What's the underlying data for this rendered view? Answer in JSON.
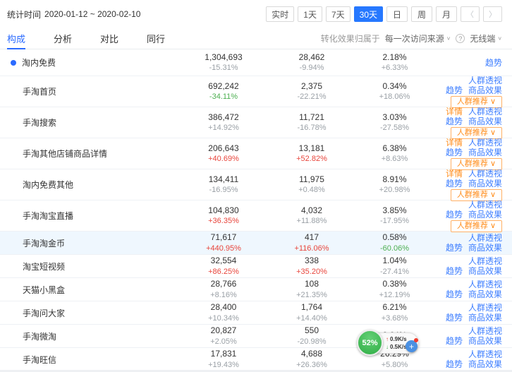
{
  "colors": {
    "accent_blue": "#2b6bff",
    "link_blue": "#3d7eff",
    "link_orange": "#ff8c1a",
    "up_red": "#e8453c",
    "down_green": "#4caf50",
    "neutral_gray": "#9aa0a6",
    "highlight_row_bg": "#eff7fe",
    "selected_period_bg": "#2678ff"
  },
  "header": {
    "stat_time_label": "统计时间",
    "date_range": "2020-01-12 ~ 2020-02-10",
    "periods": [
      "实时",
      "1天",
      "7天",
      "30天",
      "日",
      "周",
      "月"
    ],
    "selected_period": "30天",
    "prev_icon": "〈",
    "next_icon": "〉"
  },
  "tabs": [
    {
      "key": "composition",
      "label": "构成",
      "active": true
    },
    {
      "key": "analysis",
      "label": "分析",
      "active": false
    },
    {
      "key": "compare",
      "label": "对比",
      "active": false
    },
    {
      "key": "peers",
      "label": "同行",
      "active": false
    }
  ],
  "toolbar": {
    "attribution_label": "转化效果归属于",
    "attribution_value": "每一次访问来源",
    "caret": "∨",
    "help_icon": "?",
    "terminal_value": "无线端"
  },
  "table": {
    "rows": [
      {
        "name": "淘内免费",
        "dot": true,
        "highlight": false,
        "metrics": [
          {
            "value": "1,304,693",
            "change": "-15.31%",
            "tone": "gray"
          },
          {
            "value": "28,462",
            "change": "-9.94%",
            "tone": "gray"
          },
          {
            "value": "2.18%",
            "change": "+6.33%",
            "tone": "gray"
          }
        ],
        "links_row1": [],
        "links_row2": [
          {
            "key": "trend",
            "label": "趋势",
            "accent": false
          }
        ],
        "reco_button": null
      },
      {
        "name": "手淘首页",
        "dot": false,
        "highlight": false,
        "metrics": [
          {
            "value": "692,242",
            "change": "-34.11%",
            "tone": "green"
          },
          {
            "value": "2,375",
            "change": "-22.21%",
            "tone": "gray"
          },
          {
            "value": "0.34%",
            "change": "+18.06%",
            "tone": "gray"
          }
        ],
        "links_row1": [
          {
            "key": "audience-insight",
            "label": "人群透视",
            "accent": false
          }
        ],
        "links_row2": [
          {
            "key": "trend",
            "label": "趋势",
            "accent": false
          },
          {
            "key": "product-effect",
            "label": "商品效果",
            "accent": false
          }
        ],
        "reco_button": "人群推荐"
      },
      {
        "name": "手淘搜索",
        "dot": false,
        "highlight": false,
        "metrics": [
          {
            "value": "386,472",
            "change": "+14.92%",
            "tone": "gray"
          },
          {
            "value": "11,721",
            "change": "-16.78%",
            "tone": "gray"
          },
          {
            "value": "3.03%",
            "change": "-27.58%",
            "tone": "gray"
          }
        ],
        "links_row1": [
          {
            "key": "detail",
            "label": "详情",
            "accent": true
          },
          {
            "key": "audience-insight",
            "label": "人群透视",
            "accent": false
          }
        ],
        "links_row2": [
          {
            "key": "trend",
            "label": "趋势",
            "accent": false
          },
          {
            "key": "product-effect",
            "label": "商品效果",
            "accent": false
          }
        ],
        "reco_button": "人群推荐"
      },
      {
        "name": "手淘其他店铺商品详情",
        "dot": false,
        "highlight": false,
        "metrics": [
          {
            "value": "206,643",
            "change": "+40.69%",
            "tone": "red"
          },
          {
            "value": "13,181",
            "change": "+52.82%",
            "tone": "red"
          },
          {
            "value": "6.38%",
            "change": "+8.63%",
            "tone": "gray"
          }
        ],
        "links_row1": [
          {
            "key": "detail",
            "label": "详情",
            "accent": true
          },
          {
            "key": "audience-insight",
            "label": "人群透视",
            "accent": false
          }
        ],
        "links_row2": [
          {
            "key": "trend",
            "label": "趋势",
            "accent": false
          },
          {
            "key": "product-effect",
            "label": "商品效果",
            "accent": false
          }
        ],
        "reco_button": "人群推荐"
      },
      {
        "name": "淘内免费其他",
        "dot": false,
        "highlight": false,
        "metrics": [
          {
            "value": "134,411",
            "change": "-16.95%",
            "tone": "gray"
          },
          {
            "value": "11,975",
            "change": "+0.48%",
            "tone": "gray"
          },
          {
            "value": "8.91%",
            "change": "+20.98%",
            "tone": "gray"
          }
        ],
        "links_row1": [
          {
            "key": "detail",
            "label": "详情",
            "accent": true
          },
          {
            "key": "audience-insight",
            "label": "人群透视",
            "accent": false
          }
        ],
        "links_row2": [
          {
            "key": "trend",
            "label": "趋势",
            "accent": false
          },
          {
            "key": "product-effect",
            "label": "商品效果",
            "accent": false
          }
        ],
        "reco_button": "人群推荐"
      },
      {
        "name": "手淘淘宝直播",
        "dot": false,
        "highlight": false,
        "metrics": [
          {
            "value": "104,830",
            "change": "+36.35%",
            "tone": "red"
          },
          {
            "value": "4,032",
            "change": "+11.88%",
            "tone": "gray"
          },
          {
            "value": "3.85%",
            "change": "-17.95%",
            "tone": "gray"
          }
        ],
        "links_row1": [
          {
            "key": "audience-insight",
            "label": "人群透视",
            "accent": false
          }
        ],
        "links_row2": [
          {
            "key": "trend",
            "label": "趋势",
            "accent": false
          },
          {
            "key": "product-effect",
            "label": "商品效果",
            "accent": false
          }
        ],
        "reco_button": "人群推荐"
      },
      {
        "name": "手淘淘金币",
        "dot": false,
        "highlight": true,
        "metrics": [
          {
            "value": "71,617",
            "change": "+440.95%",
            "tone": "red"
          },
          {
            "value": "417",
            "change": "+116.06%",
            "tone": "red"
          },
          {
            "value": "0.58%",
            "change": "-60.06%",
            "tone": "green"
          }
        ],
        "links_row1": [
          {
            "key": "audience-insight",
            "label": "人群透视",
            "accent": false
          }
        ],
        "links_row2": [
          {
            "key": "trend",
            "label": "趋势",
            "accent": false
          },
          {
            "key": "product-effect",
            "label": "商品效果",
            "accent": false
          }
        ],
        "reco_button": null
      },
      {
        "name": "淘宝短视频",
        "dot": false,
        "highlight": false,
        "metrics": [
          {
            "value": "32,554",
            "change": "+86.25%",
            "tone": "red"
          },
          {
            "value": "338",
            "change": "+35.20%",
            "tone": "red"
          },
          {
            "value": "1.04%",
            "change": "-27.41%",
            "tone": "gray"
          }
        ],
        "links_row1": [
          {
            "key": "audience-insight",
            "label": "人群透视",
            "accent": false
          }
        ],
        "links_row2": [
          {
            "key": "trend",
            "label": "趋势",
            "accent": false
          },
          {
            "key": "product-effect",
            "label": "商品效果",
            "accent": false
          }
        ],
        "reco_button": null
      },
      {
        "name": "天猫小黑盒",
        "dot": false,
        "highlight": false,
        "metrics": [
          {
            "value": "28,766",
            "change": "+8.16%",
            "tone": "gray"
          },
          {
            "value": "108",
            "change": "+21.35%",
            "tone": "gray"
          },
          {
            "value": "0.38%",
            "change": "+12.19%",
            "tone": "gray"
          }
        ],
        "links_row1": [
          {
            "key": "audience-insight",
            "label": "人群透视",
            "accent": false
          }
        ],
        "links_row2": [
          {
            "key": "trend",
            "label": "趋势",
            "accent": false
          },
          {
            "key": "product-effect",
            "label": "商品效果",
            "accent": false
          }
        ],
        "reco_button": null
      },
      {
        "name": "手淘问大家",
        "dot": false,
        "highlight": false,
        "metrics": [
          {
            "value": "28,400",
            "change": "+10.34%",
            "tone": "gray"
          },
          {
            "value": "1,764",
            "change": "+14.40%",
            "tone": "gray"
          },
          {
            "value": "6.21%",
            "change": "+3.68%",
            "tone": "gray"
          }
        ],
        "links_row1": [
          {
            "key": "audience-insight",
            "label": "人群透视",
            "accent": false
          }
        ],
        "links_row2": [
          {
            "key": "trend",
            "label": "趋势",
            "accent": false
          },
          {
            "key": "product-effect",
            "label": "商品效果",
            "accent": false
          }
        ],
        "reco_button": null
      },
      {
        "name": "手淘微淘",
        "dot": false,
        "highlight": false,
        "metrics": [
          {
            "value": "20,827",
            "change": "+2.05%",
            "tone": "gray"
          },
          {
            "value": "550",
            "change": "-20.98%",
            "tone": "gray"
          },
          {
            "value": "2.64%",
            "change": "",
            "tone": "gray"
          }
        ],
        "links_row1": [
          {
            "key": "audience-insight",
            "label": "人群透视",
            "accent": false
          }
        ],
        "links_row2": [
          {
            "key": "trend",
            "label": "趋势",
            "accent": false
          },
          {
            "key": "product-effect",
            "label": "商品效果",
            "accent": false
          }
        ],
        "reco_button": null
      },
      {
        "name": "手淘旺信",
        "dot": false,
        "highlight": false,
        "metrics": [
          {
            "value": "17,831",
            "change": "+19.43%",
            "tone": "gray"
          },
          {
            "value": "4,688",
            "change": "+26.36%",
            "tone": "gray"
          },
          {
            "value": "26.29%",
            "change": "+5.80%",
            "tone": "gray"
          }
        ],
        "links_row1": [
          {
            "key": "audience-insight",
            "label": "人群透视",
            "accent": false
          }
        ],
        "links_row2": [
          {
            "key": "trend",
            "label": "趋势",
            "accent": false
          },
          {
            "key": "product-effect",
            "label": "商品效果",
            "accent": false
          }
        ],
        "reco_button": null
      }
    ]
  },
  "overlay_widget": {
    "percent": "52%",
    "upload_arrow": "↑",
    "upload_speed": "0.9K/s",
    "download_arrow": "↓",
    "download_speed": "0.5K/s",
    "plus_label": "+"
  }
}
